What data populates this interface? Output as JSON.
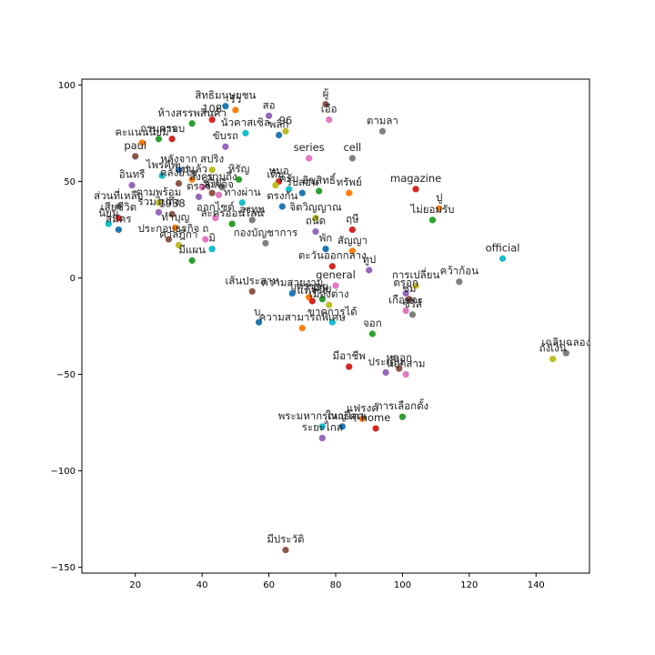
{
  "chart_data": {
    "type": "scatter",
    "title": "",
    "xlabel": "",
    "ylabel": "",
    "xlim": [
      4,
      156
    ],
    "ylim": [
      -153,
      103
    ],
    "xticks": [
      20,
      40,
      60,
      80,
      100,
      120,
      140
    ],
    "yticks": [
      -150,
      -100,
      -50,
      0,
      50,
      100
    ],
    "grid": false,
    "legend": "none",
    "palette": [
      "#1f77b4",
      "#ff7f0e",
      "#2ca02c",
      "#d62728",
      "#9467bd",
      "#8c564b",
      "#e377c2",
      "#7f7f7f",
      "#bcbd22",
      "#17becf"
    ],
    "points": [
      {
        "label": "สิทธิมนุษยชน",
        "x": 47,
        "y": 89
      },
      {
        "label": "รัว",
        "x": 50,
        "y": 87
      },
      {
        "label": "ห้างสรรพสินค้า",
        "x": 37,
        "y": 80
      },
      {
        "label": "108",
        "x": 43,
        "y": 82
      },
      {
        "label": "สอ",
        "x": 60,
        "y": 84
      },
      {
        "label": "ผู้",
        "x": 77,
        "y": 90
      },
      {
        "label": "เอือ",
        "x": 78,
        "y": 82
      },
      {
        "label": "ตามลา",
        "x": 94,
        "y": 76
      },
      {
        "label": "96",
        "x": 65,
        "y": 76
      },
      {
        "label": "นัวคาสเซิล",
        "x": 53,
        "y": 75
      },
      {
        "label": "พลิก",
        "x": 63,
        "y": 74
      },
      {
        "label": "คะแนนนิยม",
        "x": 22,
        "y": 70
      },
      {
        "label": "กรมการ",
        "x": 27,
        "y": 72
      },
      {
        "label": "ครอบ",
        "x": 31,
        "y": 72
      },
      {
        "label": "ขับรถ",
        "x": 47,
        "y": 68
      },
      {
        "label": "paul",
        "x": 20,
        "y": 63
      },
      {
        "label": "series",
        "x": 72,
        "y": 62
      },
      {
        "label": "cell",
        "x": 85,
        "y": 62
      },
      {
        "label": "สปริง",
        "x": 43,
        "y": 56
      },
      {
        "label": "ไพรคัพ",
        "x": 28,
        "y": 53
      },
      {
        "label": "หลังจาก",
        "x": 33,
        "y": 56
      },
      {
        "label": "ไปแล้ว",
        "x": 37,
        "y": 51
      },
      {
        "label": "หิรัญ",
        "x": 51,
        "y": 51
      },
      {
        "label": "หมอ",
        "x": 63,
        "y": 50
      },
      {
        "label": "อินทรี",
        "x": 19,
        "y": 48
      },
      {
        "label": "คลังอิโซ",
        "x": 33,
        "y": 49
      },
      {
        "label": "สังคม",
        "x": 40,
        "y": 47
      },
      {
        "label": "รวมถึง",
        "x": 46,
        "y": 47
      },
      {
        "label": "เดิม",
        "x": 62,
        "y": 48
      },
      {
        "label": "ครับ",
        "x": 66,
        "y": 46
      },
      {
        "label": "รับสอน",
        "x": 70,
        "y": 44
      },
      {
        "label": "ทรัพย์",
        "x": 84,
        "y": 44
      },
      {
        "label": "ลิขสิทธิ์",
        "x": 75,
        "y": 45
      },
      {
        "label": "magazine",
        "x": 104,
        "y": 46
      },
      {
        "label": "ตรวจ",
        "x": 39,
        "y": 42
      },
      {
        "label": "ชาย",
        "x": 43,
        "y": 44
      },
      {
        "label": "สมเด็จ",
        "x": 45,
        "y": 43
      },
      {
        "label": "ส่วนที่เหลือ",
        "x": 15,
        "y": 37
      },
      {
        "label": "ตามพร้อม",
        "x": 27,
        "y": 39
      },
      {
        "label": "ทางผ่าน",
        "x": 52,
        "y": 39
      },
      {
        "label": "ตรงกัน",
        "x": 64,
        "y": 37
      },
      {
        "label": "ปู",
        "x": 111,
        "y": 36
      },
      {
        "label": "ไม่ยอมรับ",
        "x": 109,
        "y": 30
      },
      {
        "label": "เสียชีวิต",
        "x": 15,
        "y": 31
      },
      {
        "label": "รวมไปถึง",
        "x": 27,
        "y": 34
      },
      {
        "label": "1938",
        "x": 31,
        "y": 33
      },
      {
        "label": "ออกไซด์",
        "x": 44,
        "y": 31
      },
      {
        "label": "ลงทุน",
        "x": 55,
        "y": 30
      },
      {
        "label": "จิตวิญญาณ",
        "x": 74,
        "y": 31
      },
      {
        "label": "นิยม",
        "x": 12,
        "y": 28
      },
      {
        "label": "สมัคร",
        "x": 15,
        "y": 25
      },
      {
        "label": "ทำบุญ",
        "x": 32,
        "y": 26
      },
      {
        "label": "ละครออนไลน์",
        "x": 49,
        "y": 28
      },
      {
        "label": "ฤษี",
        "x": 85,
        "y": 25
      },
      {
        "label": "ถนัด",
        "x": 74,
        "y": 24
      },
      {
        "label": "ประกอบธุรกิจ",
        "x": 30,
        "y": 20
      },
      {
        "label": "ถ",
        "x": 41,
        "y": 20
      },
      {
        "label": "กองบัญชาการ",
        "x": 59,
        "y": 18
      },
      {
        "label": "ศาลฎีกา",
        "x": 33,
        "y": 17
      },
      {
        "label": "มิ",
        "x": 43,
        "y": 15
      },
      {
        "label": "พัก",
        "x": 77,
        "y": 15
      },
      {
        "label": "สัญญา",
        "x": 85,
        "y": 14
      },
      {
        "label": "มีแผน",
        "x": 37,
        "y": 9
      },
      {
        "label": "ตะวันออกกลาง",
        "x": 79,
        "y": 6
      },
      {
        "label": "ทูป",
        "x": 90,
        "y": 4
      },
      {
        "label": "เส้นประสาท",
        "x": 55,
        "y": -7
      },
      {
        "label": "general",
        "x": 80,
        "y": -4
      },
      {
        "label": "คว้าก้อน",
        "x": 117,
        "y": -2
      },
      {
        "label": "การเปลี่ยน",
        "x": 104,
        "y": -4
      },
      {
        "label": "official",
        "x": 130,
        "y": 10
      },
      {
        "label": "ความสวยงาม",
        "x": 67,
        "y": -8
      },
      {
        "label": "บุตรชาย",
        "x": 72,
        "y": -10
      },
      {
        "label": "ด้วย",
        "x": 76,
        "y": -11
      },
      {
        "label": "แท้จริง",
        "x": 73,
        "y": -12
      },
      {
        "label": "ตรอก",
        "x": 101,
        "y": -8
      },
      {
        "label": "ชม",
        "x": 102,
        "y": -11
      },
      {
        "label": "เกือบจะ",
        "x": 101,
        "y": -17
      },
      {
        "label": "ซีรีส์",
        "x": 103,
        "y": -19
      },
      {
        "label": "เมืองต่าง",
        "x": 78,
        "y": -14
      },
      {
        "label": "ขาดการได้",
        "x": 79,
        "y": -23
      },
      {
        "label": "บ.",
        "x": 57,
        "y": -23
      },
      {
        "label": "ความสามารถพิเศษ",
        "x": 70,
        "y": -26
      },
      {
        "label": "จอก",
        "x": 91,
        "y": -29
      },
      {
        "label": "มีอาชีพ",
        "x": 84,
        "y": -46
      },
      {
        "label": "ประเด็น",
        "x": 95,
        "y": -49
      },
      {
        "label": "หลอก",
        "x": 99,
        "y": -47
      },
      {
        "label": "นอกสาม",
        "x": 101,
        "y": -50
      },
      {
        "label": "เฉลิมฉลอง",
        "x": 149,
        "y": -39
      },
      {
        "label": "ถังเงิน",
        "x": 145,
        "y": -42
      },
      {
        "label": "พระมหากรุณาธิคุณ",
        "x": 76,
        "y": -77
      },
      {
        "label": "ใหญ่โต",
        "x": 82,
        "y": -77
      },
      {
        "label": "แฟรงค์",
        "x": 88,
        "y": -73
      },
      {
        "label": "การเลือกตั้ง",
        "x": 100,
        "y": -72
      },
      {
        "label": "home",
        "x": 92,
        "y": -78
      },
      {
        "label": "ระยะไกล",
        "x": 76,
        "y": -83
      },
      {
        "label": "มีประวัติ",
        "x": 65,
        "y": -141
      }
    ]
  }
}
